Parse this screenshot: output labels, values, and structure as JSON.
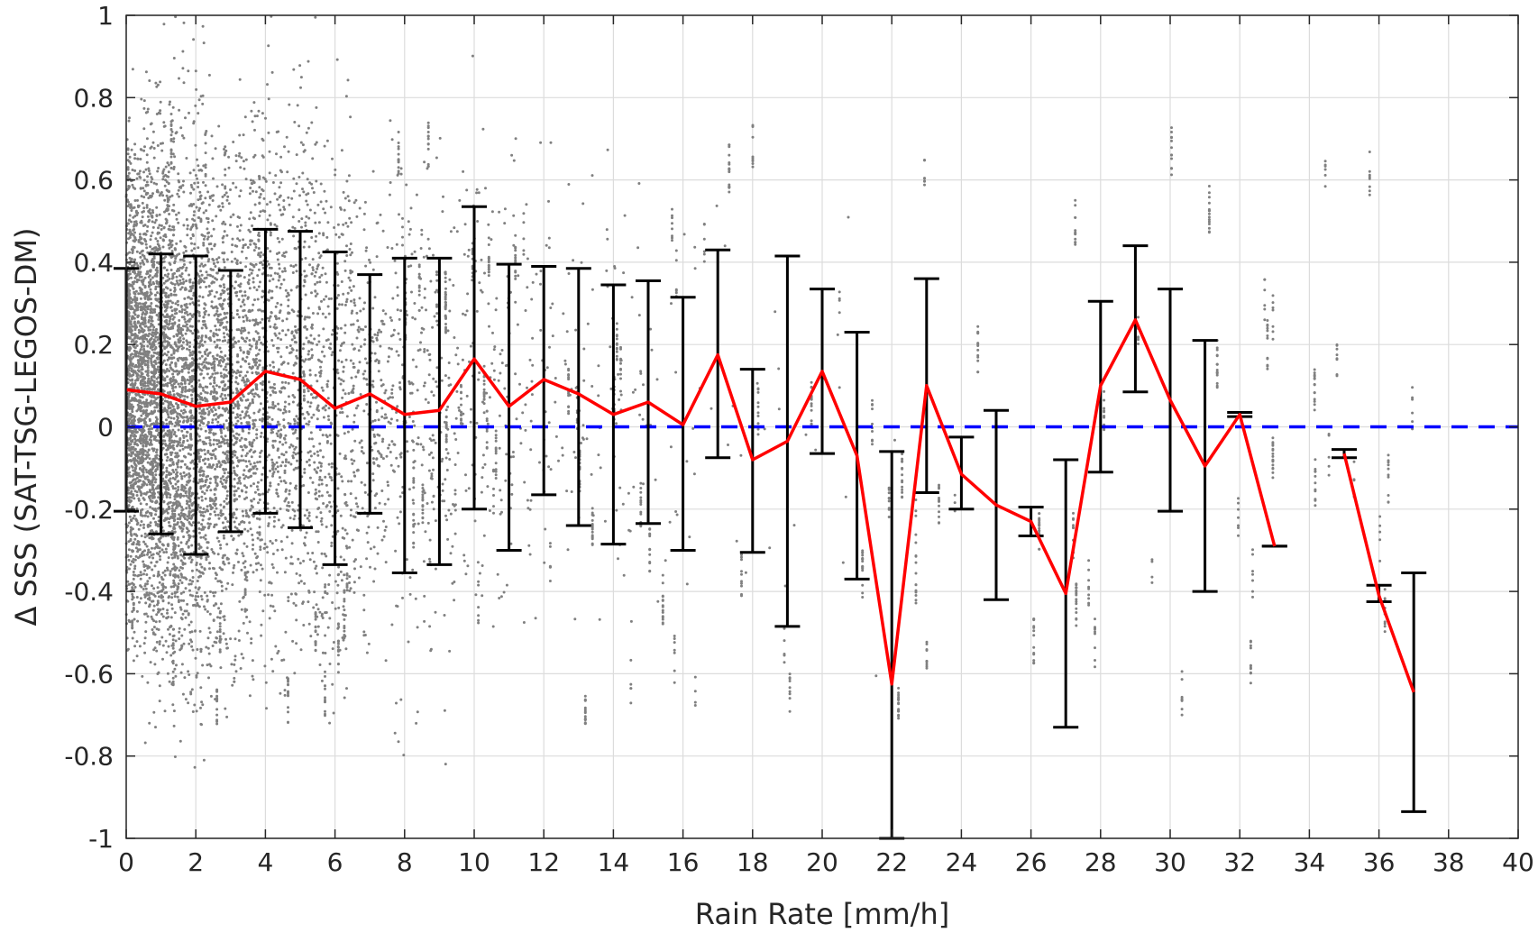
{
  "chart_data": {
    "type": "scatter",
    "xlabel": "Rain Rate [mm/h]",
    "ylabel": "Δ SSS (SAT-TSG-LEGOS-DM)",
    "xlim": [
      0,
      40
    ],
    "ylim": [
      -1,
      1
    ],
    "x_ticks": [
      0,
      2,
      4,
      6,
      8,
      10,
      12,
      14,
      16,
      18,
      20,
      22,
      24,
      26,
      28,
      30,
      32,
      34,
      36,
      38,
      40
    ],
    "x_tick_labels": [
      "0",
      "2",
      "4",
      "6",
      "8",
      "10",
      "12",
      "14",
      "16",
      "18",
      "20",
      "22",
      "24",
      "26",
      "28",
      "30",
      "32",
      "34",
      "36",
      "38",
      "40"
    ],
    "y_ticks": [
      -1,
      -0.8,
      -0.6,
      -0.4,
      -0.2,
      0,
      0.2,
      0.4,
      0.6,
      0.8,
      1
    ],
    "y_tick_labels": [
      "-1",
      "-0.8",
      "-0.6",
      "-0.4",
      "-0.2",
      "0",
      "0.2",
      "0.4",
      "0.6",
      "0.8",
      "1"
    ],
    "grid": true,
    "colors": {
      "scatter": "#808080",
      "mean_line": "#ff0000",
      "error_bars": "#000000",
      "zero_line": "#0000ff",
      "grid": "#dcdcdc",
      "axes": "#262626"
    },
    "scatter_description_density": "dense near 0 mm/h, sparse beyond 20 mm/h",
    "zero_line": {
      "y": 0,
      "style": "dashed"
    },
    "series": [
      {
        "type": "errorbar",
        "x": [
          0,
          1,
          2,
          3,
          4,
          5,
          6,
          7,
          8,
          9,
          10,
          11,
          12,
          13,
          14,
          15,
          16,
          17,
          18,
          19,
          20,
          21,
          22,
          23,
          24,
          25,
          26,
          27,
          28,
          29,
          30,
          31,
          32,
          33,
          35,
          36,
          37
        ],
        "mean": [
          0.09,
          0.08,
          0.05,
          0.06,
          0.135,
          0.115,
          0.045,
          0.08,
          0.03,
          0.04,
          0.165,
          0.05,
          0.115,
          0.08,
          0.03,
          0.06,
          0.005,
          0.175,
          -0.08,
          -0.035,
          0.135,
          -0.07,
          -0.625,
          0.1,
          -0.115,
          -0.19,
          -0.23,
          -0.405,
          0.1,
          0.26,
          0.065,
          -0.095,
          0.03,
          -0.29,
          -0.065,
          -0.41,
          -0.645
        ],
        "upper": [
          0.385,
          0.42,
          0.415,
          0.38,
          0.48,
          0.475,
          0.425,
          0.37,
          0.41,
          0.41,
          0.535,
          0.395,
          0.39,
          0.385,
          0.345,
          0.355,
          0.315,
          0.43,
          0.14,
          0.415,
          0.335,
          0.23,
          -0.06,
          0.36,
          -0.025,
          0.04,
          -0.195,
          -0.08,
          0.305,
          0.44,
          0.335,
          0.21,
          0.035,
          -0.29,
          -0.055,
          -0.385,
          -0.355
        ],
        "lower": [
          -0.205,
          -0.26,
          -0.31,
          -0.255,
          -0.21,
          -0.245,
          -0.335,
          -0.21,
          -0.355,
          -0.335,
          -0.2,
          -0.3,
          -0.165,
          -0.24,
          -0.285,
          -0.235,
          -0.3,
          -0.075,
          -0.305,
          -0.485,
          -0.065,
          -0.37,
          -1.0,
          -0.16,
          -0.2,
          -0.42,
          -0.265,
          -0.73,
          -0.11,
          0.085,
          -0.205,
          -0.4,
          0.025,
          -0.29,
          -0.075,
          -0.425,
          -0.935
        ]
      }
    ],
    "mean_line_segments": [
      [
        0,
        1,
        2,
        3,
        4,
        5,
        6,
        7,
        8,
        9,
        10,
        11,
        12,
        13,
        14,
        15,
        16,
        17,
        18,
        19,
        20,
        21,
        22,
        23,
        24,
        25,
        26,
        27,
        28,
        29,
        30,
        31,
        32,
        33
      ],
      [
        35,
        36,
        37
      ]
    ]
  }
}
